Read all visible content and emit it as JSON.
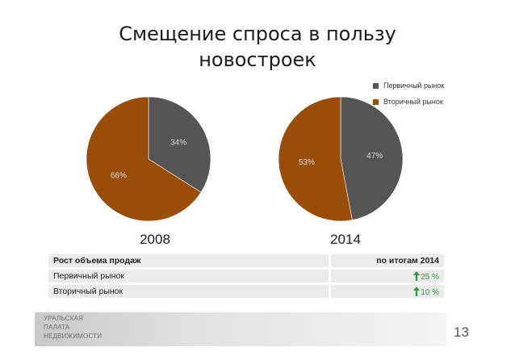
{
  "slide": {
    "title_line1": "Смещение спроса в пользу",
    "title_line2": "новостроек",
    "page_number": "13"
  },
  "legend": {
    "primary_label": "Первичный рынок",
    "secondary_label": "Вторичный рынок"
  },
  "colors": {
    "primary": "#555555",
    "secondary": "#9a4d06",
    "growth_green": "#2f9a3b"
  },
  "chart_data": [
    {
      "type": "pie",
      "title": "2008",
      "categories": [
        "Первичный рынок",
        "Вторичный рынок"
      ],
      "values": [
        34,
        66
      ],
      "labels": [
        "34%",
        "66%"
      ],
      "colors": [
        "#555555",
        "#9a4d06"
      ]
    },
    {
      "type": "pie",
      "title": "2014",
      "categories": [
        "Первичный рынок",
        "Вторичный рынок"
      ],
      "values": [
        47,
        53
      ],
      "labels": [
        "47%",
        "53%"
      ],
      "colors": [
        "#555555",
        "#9a4d06"
      ]
    }
  ],
  "table": {
    "header_label": "Рост объема продаж",
    "header_value": "по итогам 2014",
    "rows": [
      {
        "label": "Первичный рынок",
        "value": "25 %"
      },
      {
        "label": "Вторичный рынок",
        "value": "10 %"
      }
    ]
  },
  "footer": {
    "logo_line1": "УРАЛЬСКАЯ",
    "logo_line2": "ПАЛАТА",
    "logo_line3": "НЕДВИЖИМОСТИ"
  }
}
